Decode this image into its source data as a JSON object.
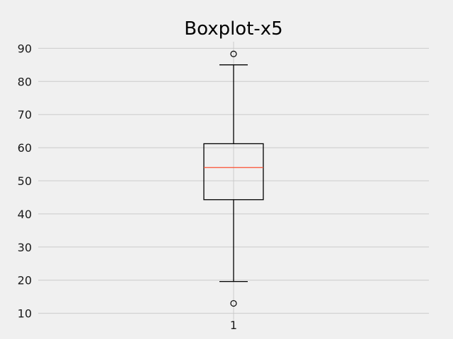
{
  "chart_data": {
    "type": "box",
    "title": "Boxplot-x5",
    "xlabel": "",
    "ylabel": "",
    "categories": [
      "1"
    ],
    "ylim": [
      8,
      92
    ],
    "yticks": [
      10,
      20,
      30,
      40,
      50,
      60,
      70,
      80,
      90
    ],
    "grid": true,
    "boxes": [
      {
        "category": "1",
        "whisker_low": 19.6,
        "q1": 44.3,
        "median": 54.0,
        "q3": 61.2,
        "whisker_high": 85.0,
        "outliers": [
          13.0,
          88.3
        ]
      }
    ],
    "colors": {
      "background": "#f0f0f0",
      "grid": "#cbcbcb",
      "box": "#000000",
      "median": "#fc4f30"
    }
  }
}
